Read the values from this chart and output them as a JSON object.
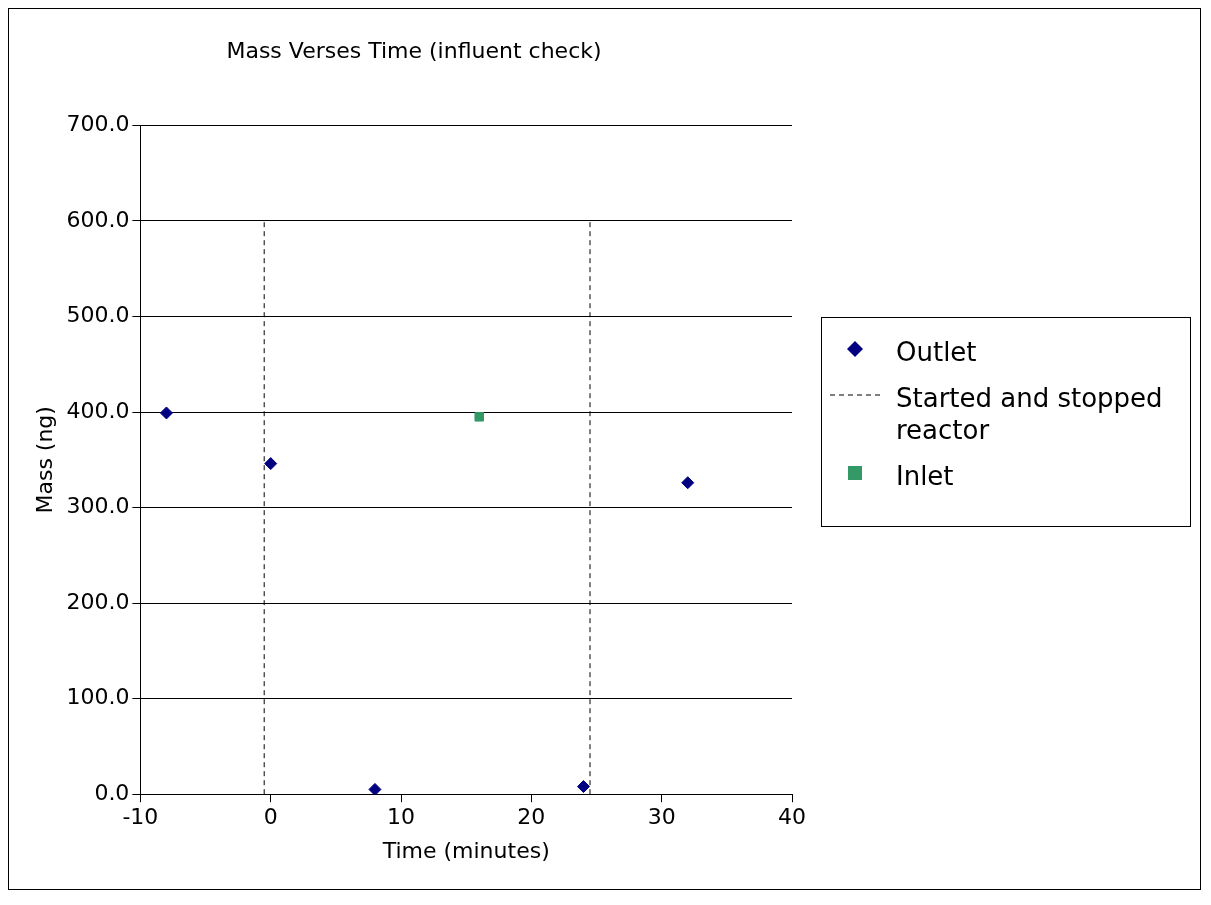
{
  "chart_data": {
    "type": "scatter",
    "title": "Mass Verses Time (influent check)",
    "xlabel": "Time (minutes)",
    "ylabel": "Mass (ng)",
    "xlim": [
      -10,
      40
    ],
    "xticks": [
      -10,
      0,
      10,
      20,
      30,
      40
    ],
    "ylim": [
      0,
      700
    ],
    "yticks": [
      {
        "value": 0,
        "label": "0.0"
      },
      {
        "value": 100,
        "label": "100.0"
      },
      {
        "value": 200,
        "label": "200.0"
      },
      {
        "value": 300,
        "label": "300.0"
      },
      {
        "value": 400,
        "label": "400.0"
      },
      {
        "value": 500,
        "label": "500.0"
      },
      {
        "value": 600,
        "label": "600.0"
      },
      {
        "value": 700,
        "label": "700.0"
      }
    ],
    "grid": "y",
    "legend": "right",
    "series": [
      {
        "name": "Outlet",
        "marker": "diamond",
        "color": "#000080",
        "x": [
          -8,
          0,
          8,
          24,
          32
        ],
        "values": [
          399,
          346,
          5,
          8,
          326
        ]
      },
      {
        "name": "Started and stopped reactor",
        "type": "line",
        "marker": "none",
        "line_style": "dashed",
        "color": "#000000",
        "x": [
          -0.5,
          -0.5,
          null,
          24.5,
          24.5
        ],
        "values": [
          0,
          600,
          null,
          0,
          600
        ]
      },
      {
        "name": "Inlet",
        "marker": "square",
        "color": "#339966",
        "x": [
          16
        ],
        "values": [
          395
        ]
      }
    ]
  }
}
